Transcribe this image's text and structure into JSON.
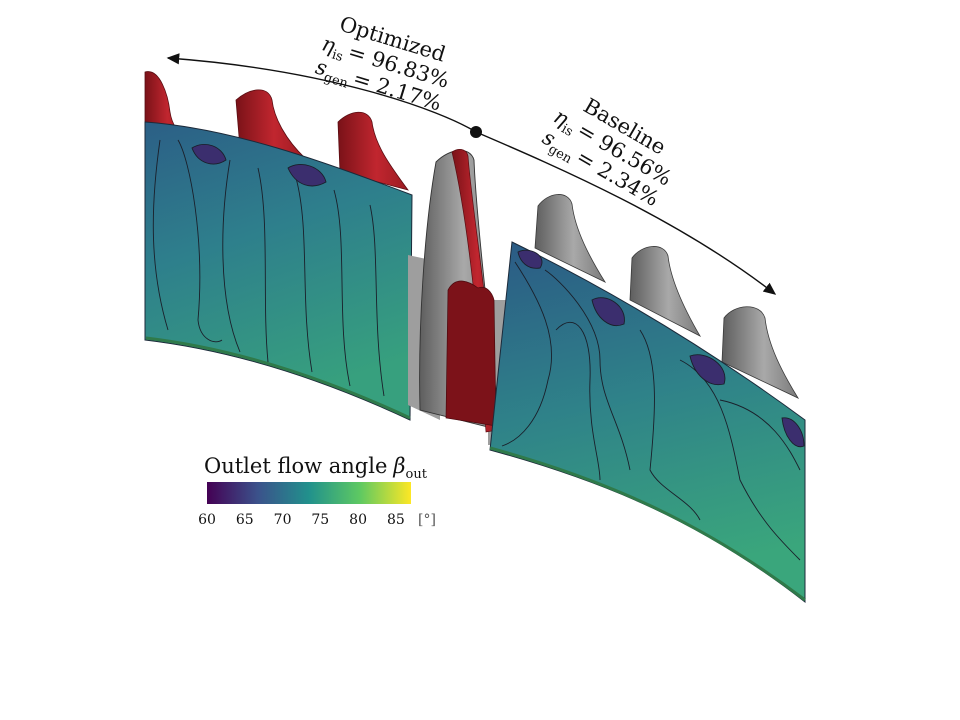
{
  "optimized": {
    "title": "Optimized",
    "eta_symbol": "η",
    "eta_sub": "is",
    "eta_value": "= 96.83%",
    "s_symbol": "s",
    "s_sub": "gen",
    "s_value": "= 2.17%"
  },
  "baseline": {
    "title": "Baseline",
    "eta_symbol": "η",
    "eta_sub": "is",
    "eta_value": "= 96.56%",
    "s_symbol": "s",
    "s_sub": "gen",
    "s_value": "= 2.34%"
  },
  "colorbar": {
    "title": "Outlet flow angle",
    "symbol": "β",
    "symbol_sub": "out",
    "ticks": [
      "60",
      "65",
      "70",
      "75",
      "80",
      "85"
    ],
    "unit": "[°]",
    "range": [
      60,
      87
    ],
    "colormap": [
      "#440154",
      "#3b528b",
      "#21918c",
      "#5ec962",
      "#fde725"
    ]
  },
  "colors": {
    "optimized_blade": "#b3242b",
    "baseline_blade": "#8f8f8f",
    "surface_low": "#2a2f6b",
    "surface_mid": "#2c6d8a",
    "surface_high": "#3fae7a"
  }
}
